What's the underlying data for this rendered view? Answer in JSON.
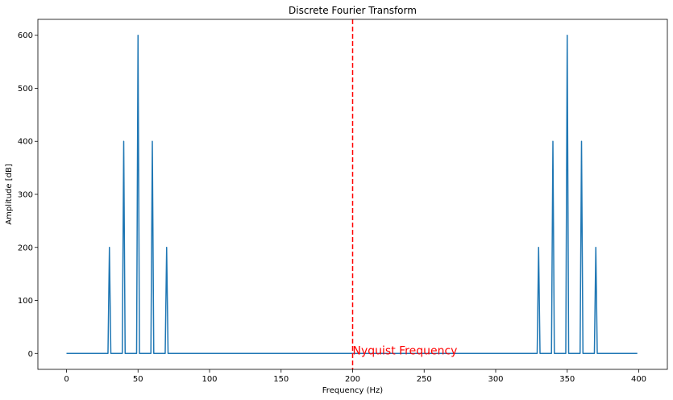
{
  "chart_data": {
    "type": "line",
    "title": "Discrete Fourier Transform",
    "xlabel": "Frequency (Hz)",
    "ylabel": "Amplitude [dB]",
    "xlim": [
      -20,
      420
    ],
    "ylim": [
      -30,
      630
    ],
    "xticks": [
      0,
      50,
      100,
      150,
      200,
      250,
      300,
      350,
      400
    ],
    "yticks": [
      0,
      100,
      200,
      300,
      400,
      500,
      600
    ],
    "grid": false,
    "series": [
      {
        "color": "#1f77b4",
        "x": [
          0,
          29,
          30,
          31,
          39,
          40,
          41,
          49,
          50,
          51,
          59,
          60,
          61,
          69,
          70,
          71,
          329,
          330,
          331,
          339,
          340,
          341,
          349,
          350,
          351,
          359,
          360,
          361,
          369,
          370,
          371,
          399
        ],
        "y": [
          0,
          0,
          200,
          0,
          0,
          400,
          0,
          0,
          600,
          0,
          0,
          400,
          0,
          0,
          200,
          0,
          0,
          200,
          0,
          0,
          400,
          0,
          0,
          600,
          0,
          0,
          400,
          0,
          0,
          200,
          0,
          0
        ]
      }
    ],
    "vline": {
      "x": 200,
      "color": "#ff0000",
      "style": "dashed"
    },
    "annotation": {
      "text": "Nyquist Frequency",
      "x": 200,
      "y": 0,
      "color": "#ff0000"
    }
  }
}
